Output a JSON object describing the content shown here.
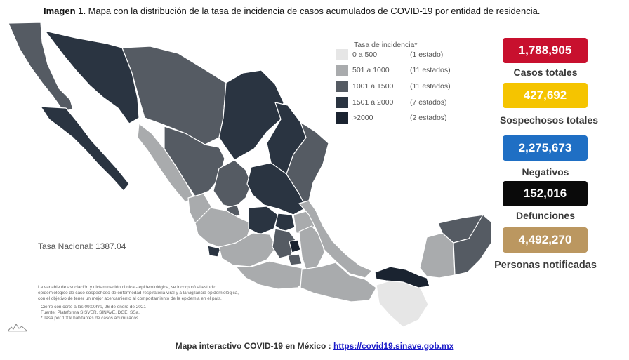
{
  "title": {
    "label": "Imagen 1.",
    "text": "Mapa con la distribución de la tasa de incidencia de casos acumulados de COVID-19 por entidad de residencia."
  },
  "legend": {
    "title": "Tasa de incidencia*",
    "items": [
      {
        "range": "0 a   500",
        "count": "(1 estado)",
        "color": "#e6e6e6"
      },
      {
        "range": "501 a  1000",
        "count": "(11 estados)",
        "color": "#a9abad"
      },
      {
        "range": "1001 a  1500",
        "count": "(11 estados)",
        "color": "#555b63"
      },
      {
        "range": "1501 a  2000",
        "count": "(7 estados)",
        "color": "#2a3441"
      },
      {
        "range": ">2000",
        "count": "(2 estados)",
        "color": "#1a2330"
      }
    ]
  },
  "tasa_nacional": "Tasa Nacional: 1387.04",
  "notes": [
    "La variable de asociación y dictaminación clínica - epidemiológica, se incorporó al estudio",
    "epidemiológico de caso sospechoso de enfermedad respiratoria viral y a la vigilancia epidemiológica,",
    "con el objetivo de tener un mejor acercamiento al comportamiento de la epidemia en el país.",
    "Cierre con corte a las 09:00hrs, 26 de enero de 2021",
    "Fuente: Plataforma SISVER, SINAVE, DGE, SSa.",
    "* Tasa por 100k habitantes de casos acumulados."
  ],
  "stats": [
    {
      "value": "1,788,905",
      "label": "Casos totales",
      "color": "#c8102e"
    },
    {
      "value": "427,692",
      "label": "Sospechosos totales",
      "color": "#f5c400"
    },
    {
      "value": "2,275,673",
      "label": "Negativos",
      "color": "#1f6fc4"
    },
    {
      "value": "152,016",
      "label": "Defunciones",
      "color": "#0a0a0a"
    },
    {
      "value": "4,492,270",
      "label": "Personas notificadas",
      "color": "#bb9760"
    }
  ],
  "footer": {
    "text": "Mapa interactivo COVID-19 en México :",
    "link": "https://covid19.sinave.gob.mx"
  }
}
